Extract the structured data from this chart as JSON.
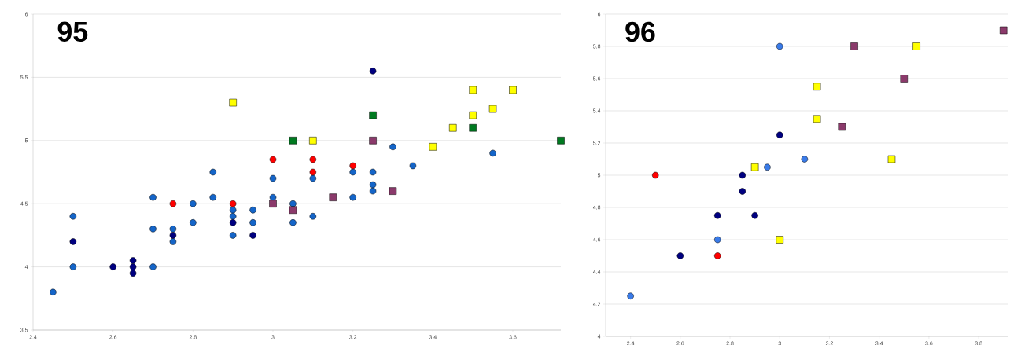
{
  "chart_data": [
    {
      "type": "scatter",
      "title": "95",
      "xlim": [
        2.4,
        3.72
      ],
      "ylim": [
        3.5,
        6
      ],
      "xticks": [
        2.4,
        2.6,
        2.8,
        3,
        3.2,
        3.4,
        3.6
      ],
      "yticks": [
        3.5,
        4,
        4.5,
        5,
        5.5,
        6
      ],
      "grid": "y",
      "series": [
        {
          "color": "#1565c8",
          "marker": "circle",
          "x": [
            2.45,
            2.5,
            2.5,
            2.7,
            2.7,
            2.7,
            2.75,
            2.75,
            2.8,
            2.8,
            2.85,
            2.85,
            2.9,
            2.9,
            2.9,
            2.95,
            2.95,
            3.0,
            3.0,
            3.05,
            3.05,
            3.1,
            3.1,
            3.2,
            3.2,
            3.25,
            3.25,
            3.25,
            3.3,
            3.35,
            3.55
          ],
          "values": [
            3.8,
            4.4,
            4.0,
            4.55,
            4.3,
            4.0,
            4.3,
            4.2,
            4.5,
            4.35,
            4.75,
            4.55,
            4.45,
            4.4,
            4.25,
            4.45,
            4.35,
            4.7,
            4.55,
            4.5,
            4.35,
            4.7,
            4.4,
            4.75,
            4.55,
            4.75,
            4.65,
            4.6,
            4.95,
            4.8,
            4.9
          ]
        },
        {
          "color": "#000080",
          "marker": "circle",
          "x": [
            2.5,
            2.6,
            2.65,
            2.65,
            2.65,
            2.75,
            2.9,
            2.95,
            3.25
          ],
          "values": [
            4.2,
            4.0,
            4.05,
            4.0,
            3.95,
            4.25,
            4.35,
            4.25,
            5.55
          ]
        },
        {
          "color": "#ff0000",
          "marker": "circle",
          "x": [
            2.75,
            2.9,
            3.0,
            3.1,
            3.1,
            3.2
          ],
          "values": [
            4.5,
            4.5,
            4.85,
            4.85,
            4.75,
            4.8
          ]
        },
        {
          "color": "#ffff00",
          "marker": "square",
          "x": [
            2.9,
            3.1,
            3.4,
            3.45,
            3.5,
            3.5,
            3.55,
            3.6
          ],
          "values": [
            5.3,
            5.0,
            4.95,
            5.1,
            5.4,
            5.2,
            5.25,
            5.4
          ]
        },
        {
          "color": "#007a20",
          "marker": "square",
          "x": [
            3.05,
            3.25,
            3.5,
            3.72
          ],
          "values": [
            5.0,
            5.2,
            5.1,
            5.0
          ]
        },
        {
          "color": "#8b3a6b",
          "marker": "square",
          "x": [
            3.0,
            3.05,
            3.15,
            3.25,
            3.3
          ],
          "values": [
            4.5,
            4.45,
            4.55,
            5.0,
            4.6
          ]
        }
      ]
    },
    {
      "type": "scatter",
      "title": "96",
      "xlim": [
        2.3,
        3.92
      ],
      "ylim": [
        4,
        6
      ],
      "xticks": [
        2.4,
        2.6,
        2.8,
        3,
        3.2,
        3.4,
        3.6,
        3.8
      ],
      "yticks": [
        4,
        4.2,
        4.4,
        4.6,
        4.8,
        5,
        5.2,
        5.4,
        5.6,
        5.8,
        6
      ],
      "grid": "y",
      "series": [
        {
          "color": "#3a7be8",
          "marker": "circle",
          "x": [
            2.4,
            2.75,
            2.95,
            3.0,
            3.1
          ],
          "values": [
            4.25,
            4.6,
            5.05,
            5.8,
            5.1
          ]
        },
        {
          "color": "#000080",
          "marker": "circle",
          "x": [
            2.6,
            2.75,
            2.85,
            2.85,
            2.9,
            3.0
          ],
          "values": [
            4.5,
            4.75,
            5.0,
            4.9,
            4.75,
            5.25
          ]
        },
        {
          "color": "#ff0000",
          "marker": "circle",
          "x": [
            2.5,
            2.75
          ],
          "values": [
            5.0,
            4.5
          ]
        },
        {
          "color": "#ffff00",
          "marker": "square",
          "x": [
            2.9,
            3.0,
            3.15,
            3.15,
            3.45,
            3.55
          ],
          "values": [
            5.05,
            4.6,
            5.55,
            5.35,
            5.1,
            5.8
          ]
        },
        {
          "color": "#8b3a6b",
          "marker": "square",
          "x": [
            3.25,
            3.3,
            3.5,
            3.9
          ],
          "values": [
            5.3,
            5.8,
            5.6,
            5.9
          ]
        }
      ]
    }
  ]
}
